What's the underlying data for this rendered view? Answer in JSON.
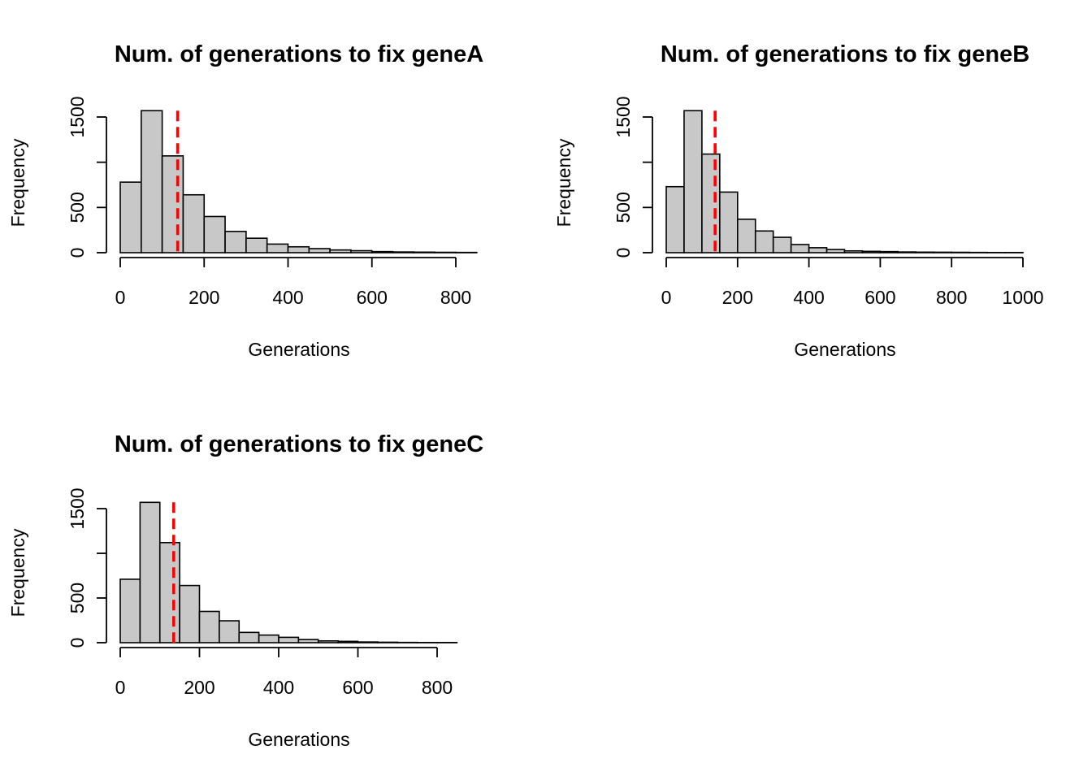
{
  "chart_data": [
    {
      "type": "bar",
      "title": "Num. of generations to fix  geneA",
      "xlabel": "Generations",
      "ylabel": "Frequency",
      "bin_width": 50,
      "bin_start": 0,
      "values": [
        780,
        1570,
        1070,
        640,
        400,
        235,
        160,
        95,
        65,
        45,
        30,
        22,
        12,
        8,
        6,
        4,
        3
      ],
      "vline": 137,
      "xlim": [
        0,
        850
      ],
      "ylim": [
        0,
        1570
      ],
      "xticks": [
        0,
        200,
        400,
        600,
        800
      ],
      "yticks": [
        0,
        500,
        1500
      ],
      "ytick_positions": [
        0,
        500,
        1000,
        1500
      ],
      "grid": false
    },
    {
      "type": "bar",
      "title": "Num. of generations to fix  geneB",
      "xlabel": "Generations",
      "ylabel": "Frequency",
      "bin_width": 50,
      "bin_start": 0,
      "values": [
        730,
        1570,
        1090,
        670,
        370,
        240,
        170,
        90,
        55,
        35,
        20,
        15,
        12,
        8,
        6,
        5,
        4,
        3,
        2,
        2
      ],
      "vline": 137,
      "xlim": [
        0,
        1000
      ],
      "ylim": [
        0,
        1570
      ],
      "xticks": [
        0,
        200,
        400,
        600,
        800,
        1000
      ],
      "yticks": [
        0,
        500,
        1500
      ],
      "ytick_positions": [
        0,
        500,
        1000,
        1500
      ],
      "grid": false
    },
    {
      "type": "bar",
      "title": "Num. of generations to fix  geneC",
      "xlabel": "Generations",
      "ylabel": "Frequency",
      "bin_width": 50,
      "bin_start": 0,
      "values": [
        710,
        1570,
        1120,
        640,
        350,
        245,
        115,
        85,
        60,
        35,
        20,
        15,
        8,
        5,
        3,
        2,
        2
      ],
      "vline": 135,
      "xlim": [
        0,
        900
      ],
      "ylim": [
        0,
        1570
      ],
      "xticks": [
        0,
        200,
        400,
        600,
        800
      ],
      "yticks": [
        0,
        500,
        1500
      ],
      "ytick_positions": [
        0,
        500,
        1000,
        1500
      ],
      "grid": false
    }
  ]
}
